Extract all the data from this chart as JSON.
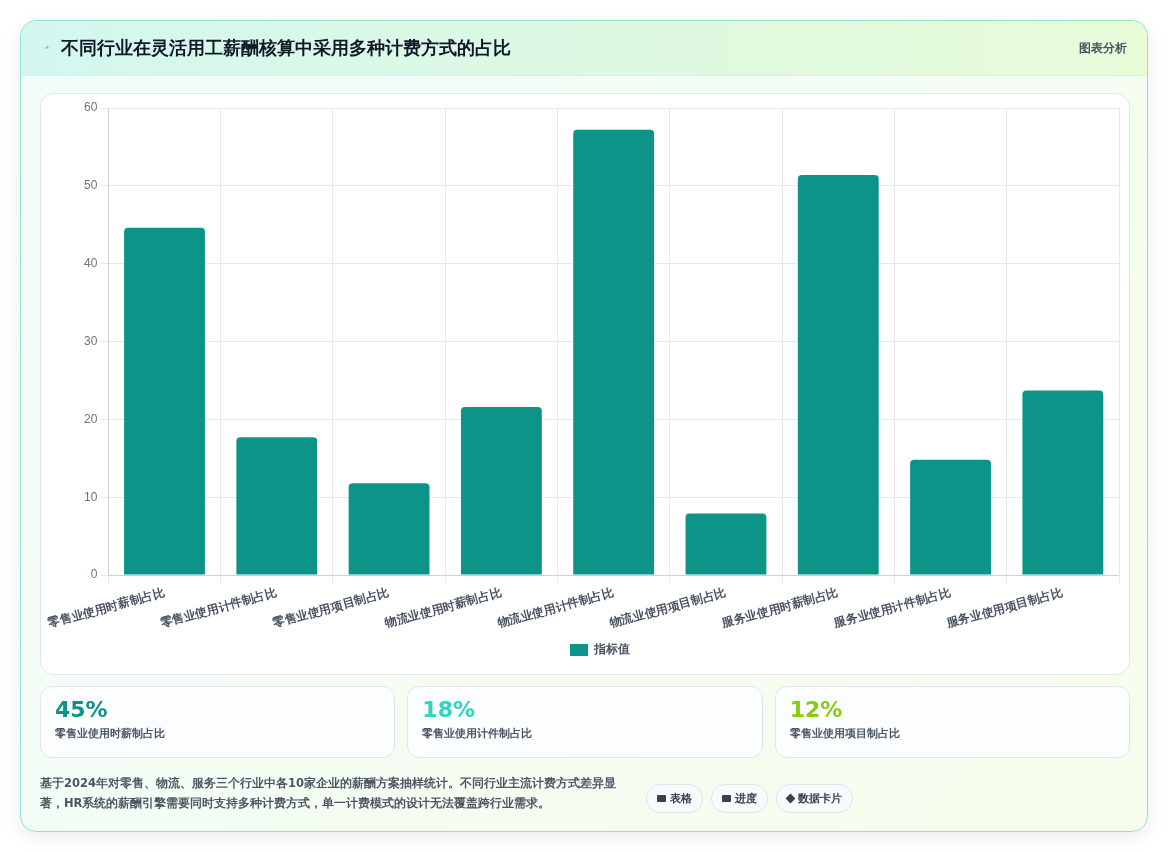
{
  "chart_data": {
    "type": "bar",
    "title": "不同行业在灵活用工薪酬核算中采用多种计费方式的占比",
    "categories": [
      "零售业使用时薪制占比",
      "零售业使用计件制占比",
      "零售业使用项目制占比",
      "物流业使用时薪制占比",
      "物流业使用计件制占比",
      "物流业使用项目制占比",
      "服务业使用时薪制占比",
      "服务业使用计件制占比",
      "服务业使用项目制占比"
    ],
    "series": [
      {
        "name": "指标值",
        "color": "#0d9488",
        "values": [
          44.6,
          17.7,
          11.8,
          21.6,
          57.2,
          7.9,
          51.4,
          14.8,
          23.7
        ]
      }
    ],
    "ylim": [
      0,
      60
    ],
    "yticks": [
      0,
      10,
      20,
      30,
      40,
      50,
      60
    ],
    "grid": true,
    "legend": "bottom",
    "annotations": [
      "图表分析",
      "45%",
      "零售业使用时薪制占比",
      "18%",
      "零售业使用计件制占比",
      "12%",
      "零售业使用项目制占比",
      "基于2024年对零售、物流、服务三个行业中各10家企业的薪酬方案抽样统计。不同行业主流计费方式差异显著，HR系统的薪酬引擎需要同时支持多种计费方式，单一计费模式的设计无法覆盖跨行业需求。",
      "表格",
      "进度",
      "数据卡片"
    ]
  }
}
